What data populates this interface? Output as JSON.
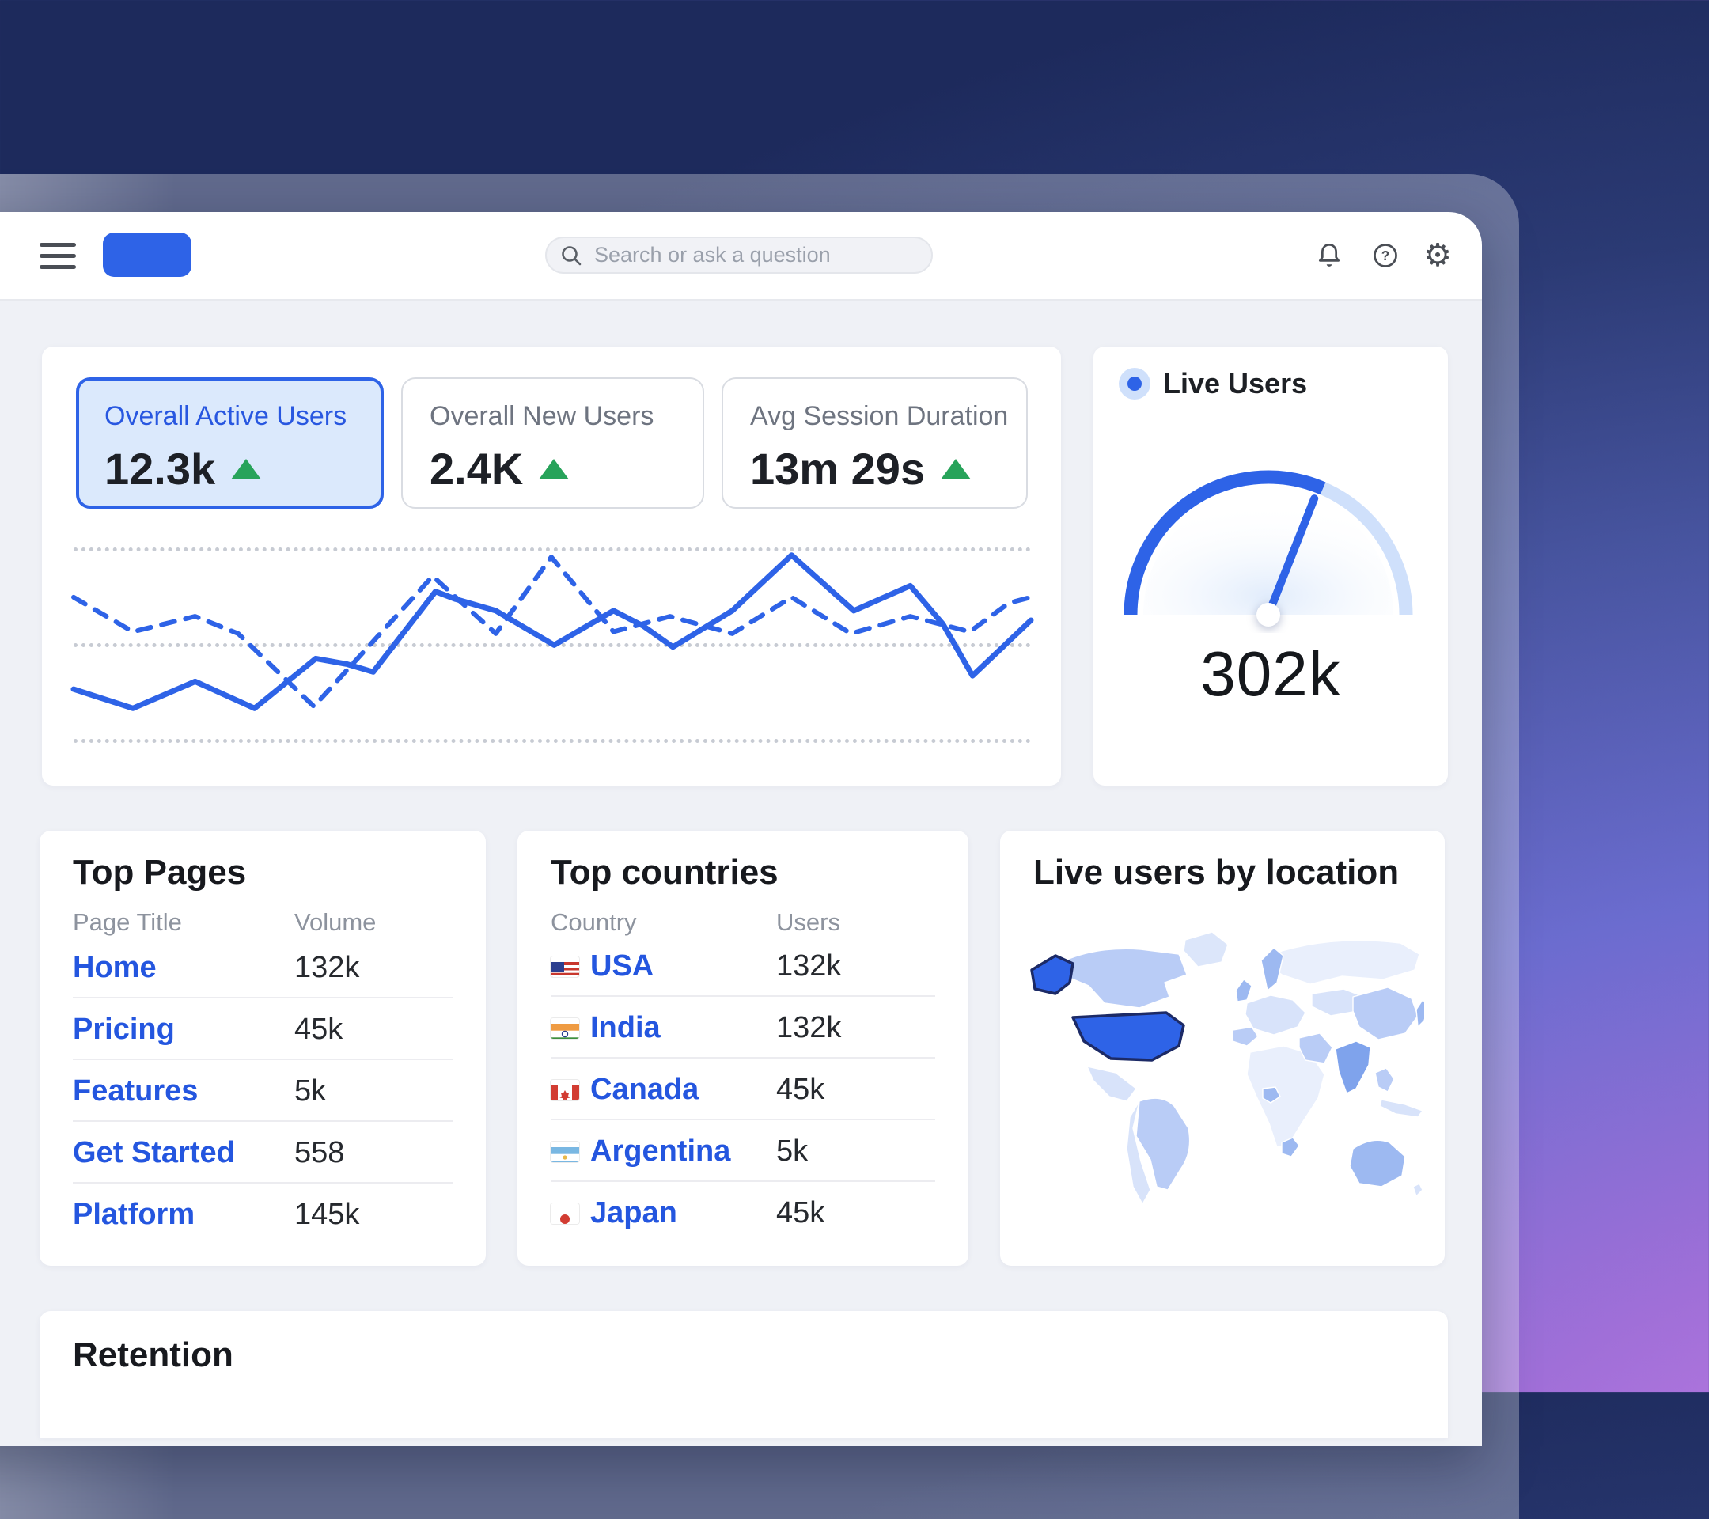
{
  "header": {
    "search": {
      "placeholder": "Search or ask a question"
    }
  },
  "metrics": [
    {
      "label": "Overall Active Users",
      "value": "12.3k",
      "trend": "up",
      "selected": true
    },
    {
      "label": "Overall New Users",
      "value": "2.4K",
      "trend": "up",
      "selected": false
    },
    {
      "label": "Avg Session Duration",
      "value": "13m 29s",
      "trend": "up",
      "selected": false
    }
  ],
  "gauge_panel": {
    "legend": "Live Users",
    "value": "302k"
  },
  "tables": {
    "top_pages": {
      "title": "Top Pages",
      "col1": "Page Title",
      "col2": "Volume",
      "rows": [
        {
          "title": "Home",
          "value": "132k"
        },
        {
          "title": "Pricing",
          "value": "45k"
        },
        {
          "title": "Features",
          "value": "5k"
        },
        {
          "title": "Get Started",
          "value": "558"
        },
        {
          "title": "Platform",
          "value": "145k"
        }
      ]
    },
    "top_countries": {
      "title": "Top countries",
      "col1": "Country",
      "col2": "Users",
      "rows": [
        {
          "country": "USA",
          "flag": "usa",
          "value": "132k"
        },
        {
          "country": "India",
          "flag": "india",
          "value": "132k"
        },
        {
          "country": "Canada",
          "flag": "canada",
          "value": "45k"
        },
        {
          "country": "Argentina",
          "flag": "argentina",
          "value": "5k"
        },
        {
          "country": "Japan",
          "flag": "japan",
          "value": "45k"
        }
      ]
    }
  },
  "map_panel": {
    "title": "Live users by location"
  },
  "retention_panel": {
    "title": "Retention"
  },
  "colors": {
    "accent_blue": "#2e63e7",
    "selected_card_bg": "#dbe9fc",
    "gauge_track": "#cfe0fb",
    "green_up": "#27a35a",
    "link_blue": "#2456df"
  },
  "chart_data": [
    {
      "type": "line",
      "title": "Overall users trend",
      "x_axis": "hidden",
      "y_axis": "hidden",
      "gridlines": 3,
      "value_range": [
        0,
        100
      ],
      "series": [
        {
          "name": "active-users",
          "style": "solid",
          "points": [
            [
              0,
              26
            ],
            [
              0.062,
              16
            ],
            [
              0.127,
              30
            ],
            [
              0.189,
              16
            ],
            [
              0.253,
              42
            ],
            [
              0.286,
              39
            ],
            [
              0.313,
              35
            ],
            [
              0.378,
              77
            ],
            [
              0.399,
              73
            ],
            [
              0.441,
              67
            ],
            [
              0.502,
              49
            ],
            [
              0.564,
              67
            ],
            [
              0.595,
              59
            ],
            [
              0.626,
              48
            ],
            [
              0.688,
              67
            ],
            [
              0.75,
              96
            ],
            [
              0.815,
              67
            ],
            [
              0.874,
              80
            ],
            [
              0.908,
              60
            ],
            [
              0.939,
              33
            ],
            [
              1,
              62
            ]
          ]
        },
        {
          "name": "new-users",
          "style": "dashed",
          "points": [
            [
              0,
              74
            ],
            [
              0.062,
              56
            ],
            [
              0.127,
              64
            ],
            [
              0.172,
              55
            ],
            [
              0.251,
              17
            ],
            [
              0.375,
              85
            ],
            [
              0.441,
              55
            ],
            [
              0.499,
              95
            ],
            [
              0.564,
              56
            ],
            [
              0.623,
              64
            ],
            [
              0.688,
              55
            ],
            [
              0.75,
              74
            ],
            [
              0.812,
              55
            ],
            [
              0.874,
              64
            ],
            [
              0.936,
              56
            ],
            [
              0.977,
              71
            ],
            [
              1,
              74
            ]
          ]
        }
      ]
    },
    {
      "type": "gauge",
      "label": "Live Users",
      "value": "302k",
      "fill_fraction": 0.63,
      "needle_fraction": 0.62
    },
    {
      "type": "choropleth",
      "title": "Live users by location",
      "highlight_countries": [
        "USA",
        "Alaska"
      ],
      "shaded_countries": [
        "Canada",
        "Brazil",
        "India",
        "China",
        "Australia",
        "Saudi Arabia",
        "Japan",
        "UK",
        "Scandinavia",
        "Nigeria",
        "South Africa",
        "Spain"
      ]
    }
  ]
}
